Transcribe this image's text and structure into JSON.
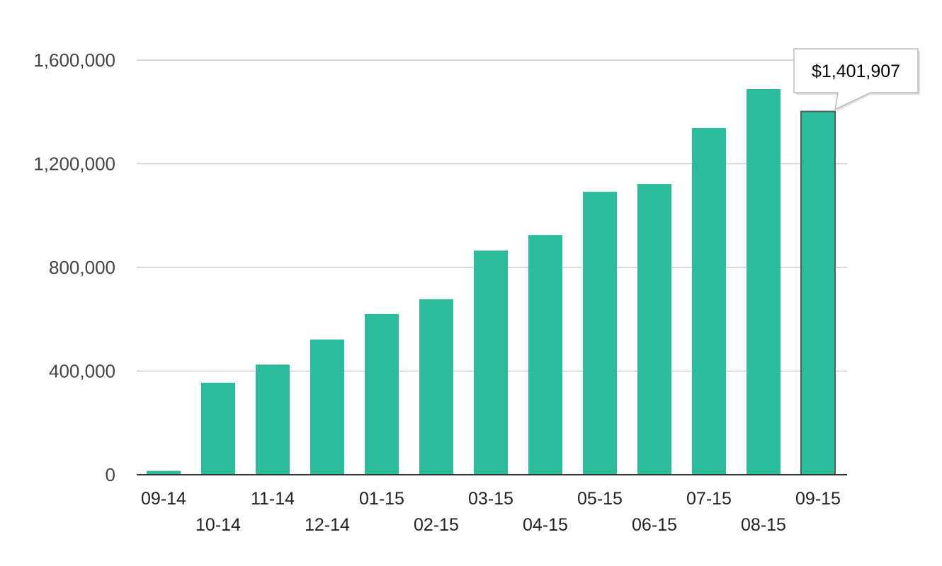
{
  "chart_data": {
    "type": "bar",
    "title": "",
    "xlabel": "",
    "ylabel": "",
    "ylim": [
      0,
      1600000
    ],
    "y_ticks": [
      0,
      400000,
      800000,
      1200000,
      1600000
    ],
    "y_tick_labels": [
      "0",
      "400,000",
      "800,000",
      "1,200,000",
      "1,600,000"
    ],
    "categories": [
      "09-14",
      "10-14",
      "11-14",
      "12-14",
      "01-15",
      "02-15",
      "03-15",
      "04-15",
      "05-15",
      "06-15",
      "07-15",
      "08-15",
      "09-15"
    ],
    "values": [
      15000,
      355000,
      425000,
      522000,
      620000,
      677000,
      865000,
      925000,
      1092000,
      1122000,
      1338000,
      1488000,
      1401907
    ],
    "grid": true,
    "legend": "none",
    "bar_color": "#2bbc9b",
    "highlighted_index": 12,
    "tooltip": {
      "category": "09-15",
      "text": "$1,401,907"
    }
  }
}
